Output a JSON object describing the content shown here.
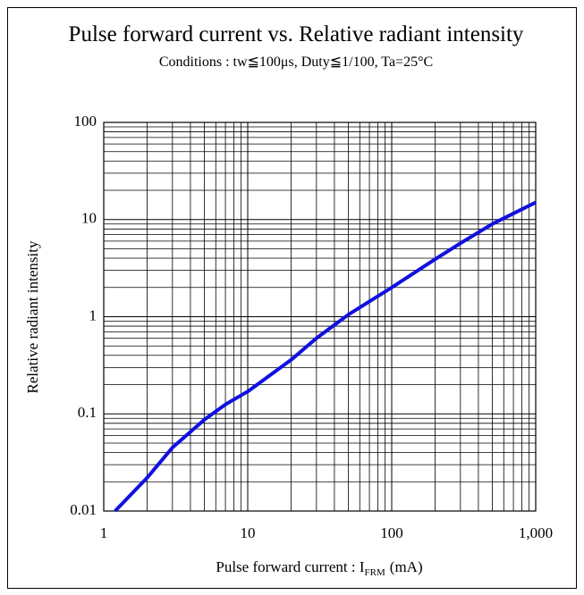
{
  "chart_data": {
    "type": "line",
    "title": "Pulse forward current vs. Relative radiant intensity",
    "subtitle": "Conditions : tw≦100μs, Duty≦1/100, Ta=25°C",
    "x_label": {
      "text": "Pulse forward current : I",
      "subscript": "FRM",
      "suffix": "(mA)"
    },
    "y_label": "Relative radiant intensity",
    "x": [
      1.2,
      2,
      3,
      5,
      7,
      10,
      20,
      30,
      50,
      100,
      200,
      300,
      500,
      1000
    ],
    "series": [
      {
        "name": "Relative radiant intensity",
        "color": "#1010e0",
        "values": [
          0.01,
          0.022,
          0.045,
          0.087,
          0.125,
          0.17,
          0.36,
          0.6,
          1.05,
          2,
          3.9,
          5.7,
          9,
          15
        ]
      }
    ],
    "xlog": true,
    "ylog": true,
    "xlim": [
      1,
      1000
    ],
    "ylim": [
      0.01,
      100
    ],
    "xticks": [
      1,
      10,
      100,
      {
        "value": 1000,
        "label": "1,000"
      }
    ],
    "yticks": [
      0.01,
      0.1,
      1,
      10,
      100
    ],
    "grid": true,
    "minor_grid": true
  }
}
